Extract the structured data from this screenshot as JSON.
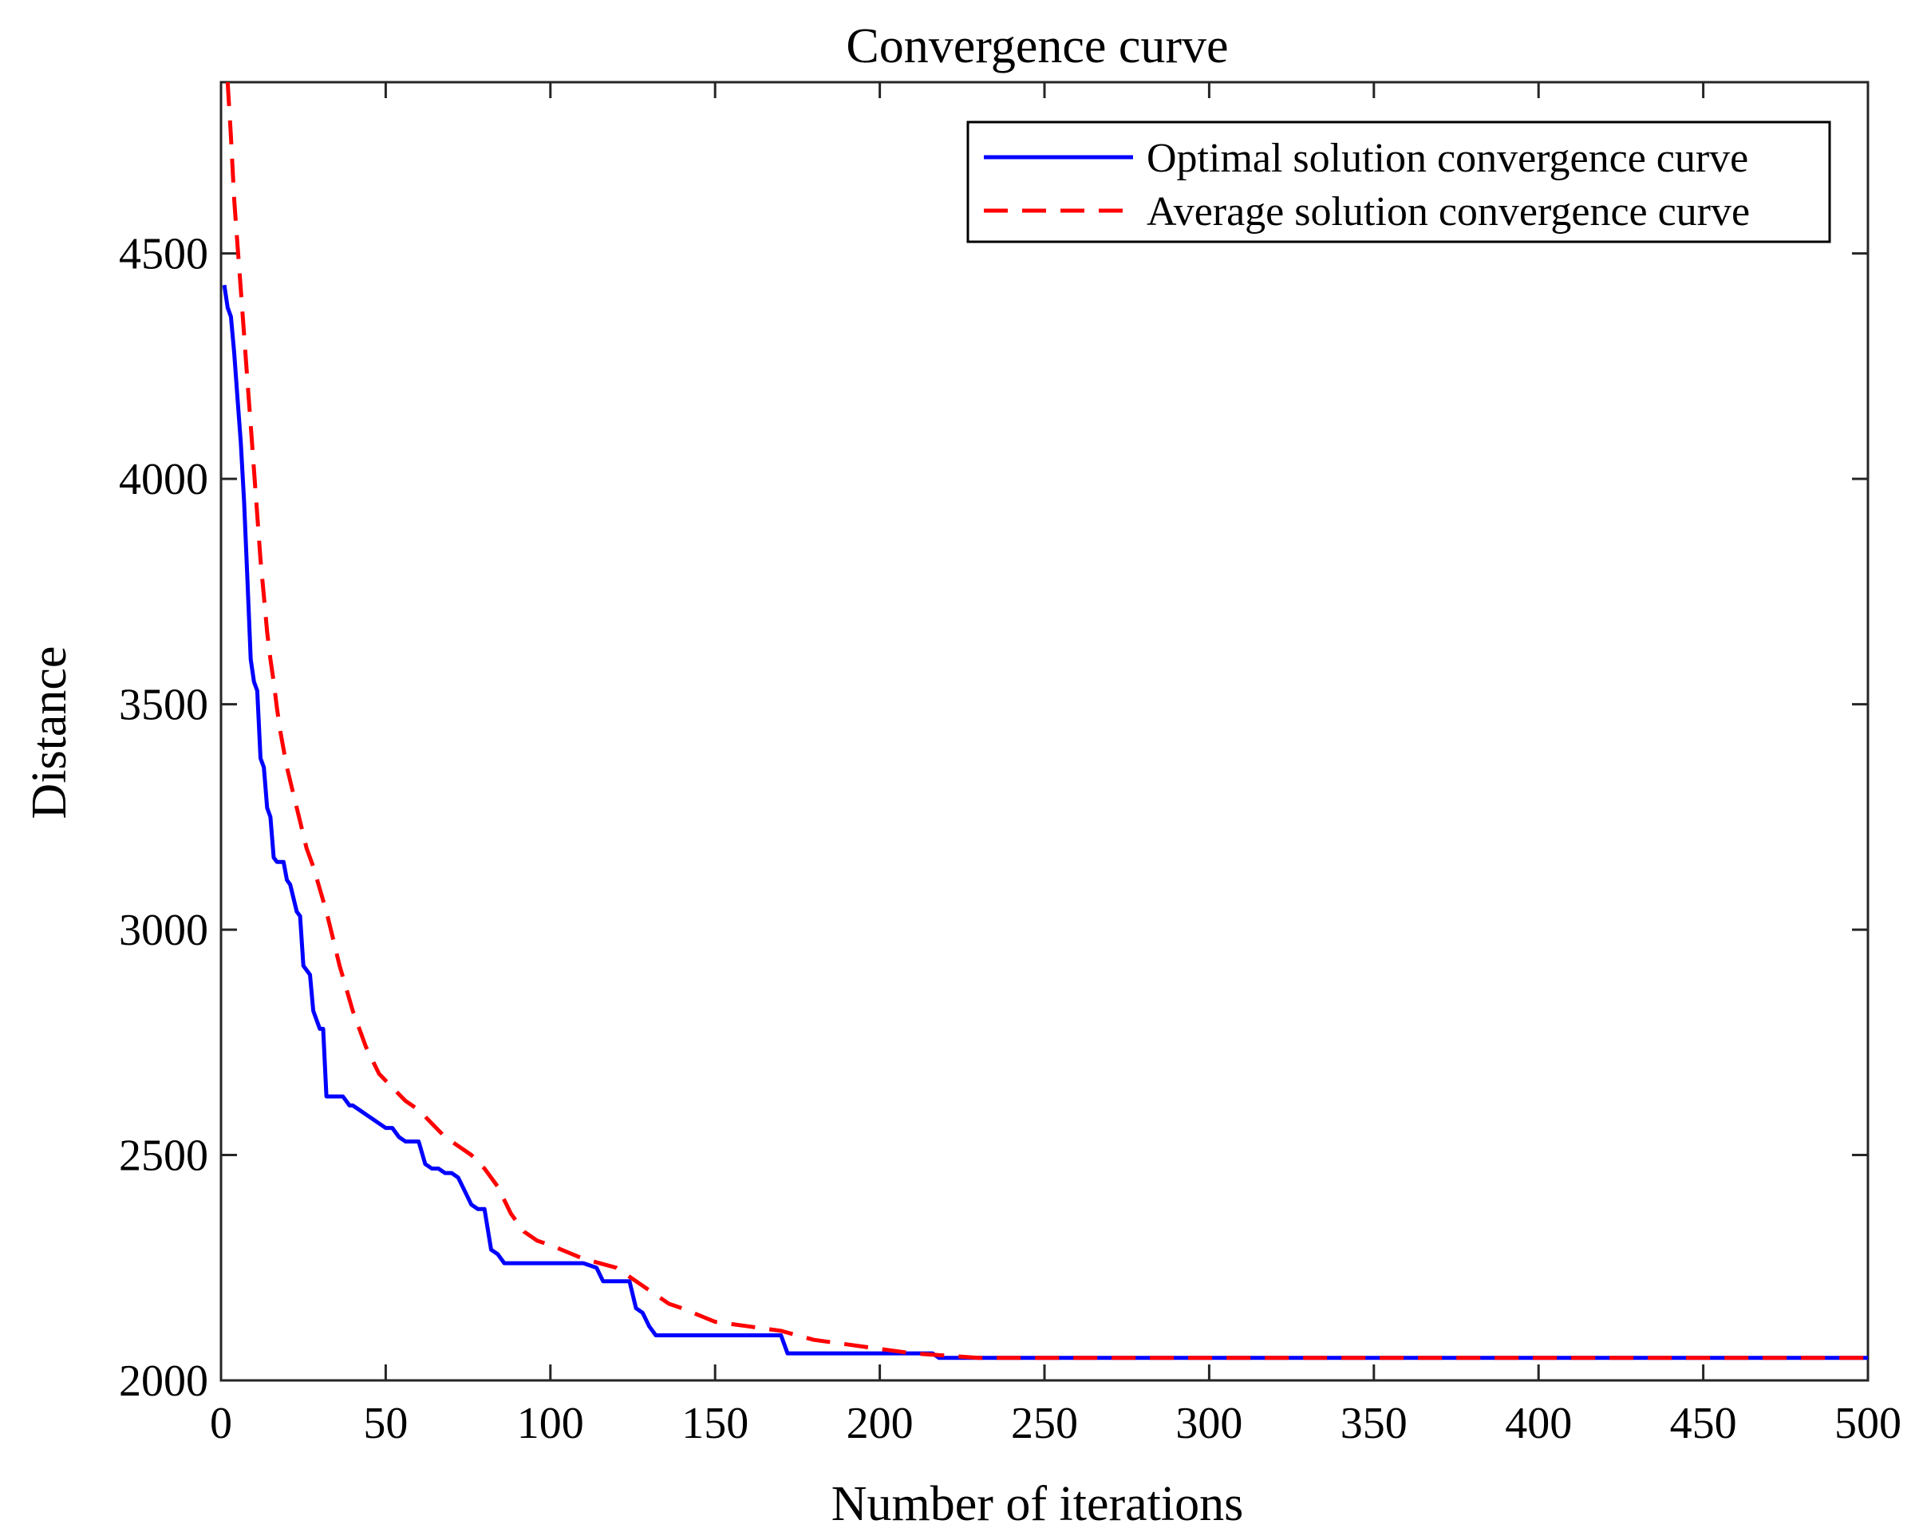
{
  "chart_data": {
    "type": "line",
    "title": "Convergence curve",
    "xlabel": "Number of iterations",
    "ylabel": "Distance",
    "xlim": [
      0,
      500
    ],
    "ylim": [
      2000,
      4880
    ],
    "xticks": [
      0,
      50,
      100,
      150,
      200,
      250,
      300,
      350,
      400,
      450,
      500
    ],
    "yticks": [
      2000,
      2500,
      3000,
      3500,
      4000,
      4500
    ],
    "grid": false,
    "legend_position": "top-right",
    "series": [
      {
        "name": "Optimal solution convergence curve",
        "color": "#0000ff",
        "style": "solid",
        "x": [
          1,
          2,
          3,
          4,
          5,
          6,
          7,
          8,
          9,
          10,
          11,
          12,
          13,
          14,
          15,
          16,
          17,
          18,
          19,
          20,
          21,
          22,
          23,
          24,
          25,
          26,
          27,
          28,
          29,
          30,
          31,
          32,
          33,
          34,
          35,
          36,
          37,
          38,
          39,
          40,
          42,
          44,
          46,
          48,
          50,
          52,
          54,
          56,
          58,
          60,
          62,
          64,
          66,
          68,
          70,
          72,
          74,
          76,
          78,
          80,
          82,
          84,
          86,
          88,
          90,
          100,
          110,
          114,
          116,
          120,
          124,
          126,
          128,
          130,
          132,
          140,
          150,
          160,
          170,
          172,
          180,
          190,
          200,
          210,
          216,
          218,
          230,
          250,
          300,
          350,
          400,
          450,
          500
        ],
        "y": [
          4430,
          4380,
          4360,
          4280,
          4180,
          4080,
          3950,
          3780,
          3600,
          3550,
          3530,
          3380,
          3360,
          3270,
          3250,
          3160,
          3150,
          3150,
          3150,
          3110,
          3100,
          3070,
          3040,
          3030,
          2920,
          2910,
          2900,
          2820,
          2800,
          2780,
          2780,
          2630,
          2630,
          2630,
          2630,
          2630,
          2630,
          2620,
          2610,
          2610,
          2600,
          2590,
          2580,
          2570,
          2560,
          2560,
          2540,
          2530,
          2530,
          2530,
          2480,
          2470,
          2470,
          2460,
          2460,
          2450,
          2420,
          2390,
          2380,
          2380,
          2290,
          2280,
          2260,
          2260,
          2260,
          2260,
          2260,
          2250,
          2220,
          2220,
          2220,
          2160,
          2150,
          2120,
          2100,
          2100,
          2100,
          2100,
          2100,
          2060,
          2060,
          2060,
          2060,
          2060,
          2060,
          2050,
          2050,
          2050,
          2050,
          2050,
          2050,
          2050,
          2050
        ]
      },
      {
        "name": "Average solution convergence curve",
        "color": "#ff0000",
        "style": "dashed",
        "x": [
          2,
          3,
          4,
          5,
          6,
          7,
          8,
          9,
          10,
          11,
          12,
          13,
          14,
          15,
          16,
          17,
          18,
          19,
          20,
          22,
          24,
          26,
          28,
          30,
          32,
          34,
          36,
          38,
          40,
          44,
          48,
          52,
          56,
          60,
          64,
          68,
          72,
          76,
          80,
          84,
          88,
          92,
          96,
          100,
          110,
          120,
          126,
          130,
          136,
          140,
          150,
          160,
          170,
          180,
          190,
          200,
          210,
          220,
          230,
          240,
          250,
          300,
          350,
          400,
          450,
          500
        ],
        "y": [
          4880,
          4760,
          4620,
          4520,
          4420,
          4320,
          4220,
          4120,
          4020,
          3920,
          3820,
          3740,
          3660,
          3600,
          3550,
          3490,
          3440,
          3400,
          3360,
          3300,
          3240,
          3180,
          3140,
          3090,
          3040,
          2980,
          2920,
          2870,
          2820,
          2740,
          2680,
          2650,
          2620,
          2600,
          2570,
          2540,
          2520,
          2500,
          2470,
          2430,
          2370,
          2330,
          2310,
          2300,
          2270,
          2250,
          2220,
          2200,
          2170,
          2160,
          2130,
          2120,
          2110,
          2090,
          2080,
          2070,
          2060,
          2055,
          2050,
          2050,
          2050,
          2050,
          2050,
          2050,
          2050,
          2050
        ]
      }
    ]
  }
}
